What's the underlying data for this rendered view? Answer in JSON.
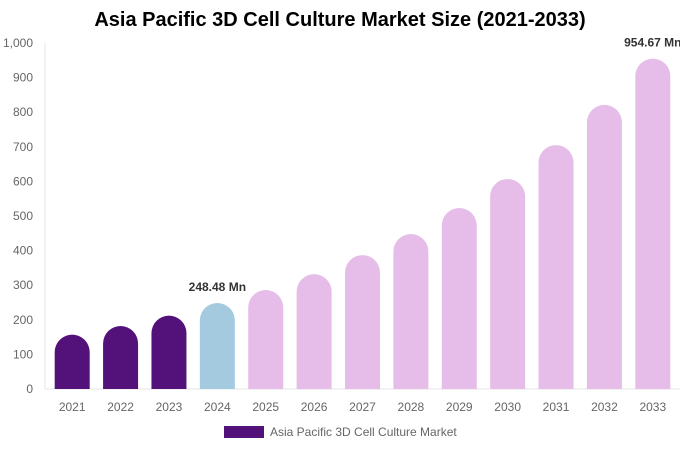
{
  "chart_data": {
    "type": "bar",
    "title": "Asia Pacific 3D Cell Culture Market Size (2021-2033)",
    "categories": [
      "2021",
      "2022",
      "2023",
      "2024",
      "2025",
      "2026",
      "2027",
      "2028",
      "2029",
      "2030",
      "2031",
      "2032",
      "2033"
    ],
    "series": [
      {
        "name": "Asia Pacific 3D Cell Culture Market",
        "values": [
          157,
          182,
          212,
          248.48,
          286,
          332,
          387,
          448,
          523,
          607,
          705,
          821,
          954.67
        ]
      }
    ],
    "data_labels": {
      "2024": "248.48 Mn",
      "2033": "954.67 Mn"
    },
    "ylim": [
      0,
      1000
    ],
    "yticks": [
      "0",
      "100",
      "200",
      "300",
      "400",
      "500",
      "600",
      "700",
      "800",
      "900",
      "1,000"
    ],
    "colors": {
      "historical": "#53127a",
      "current": "#a3cadf",
      "forecast": "#e6bde9"
    },
    "legend": "bottom",
    "grid": false
  }
}
